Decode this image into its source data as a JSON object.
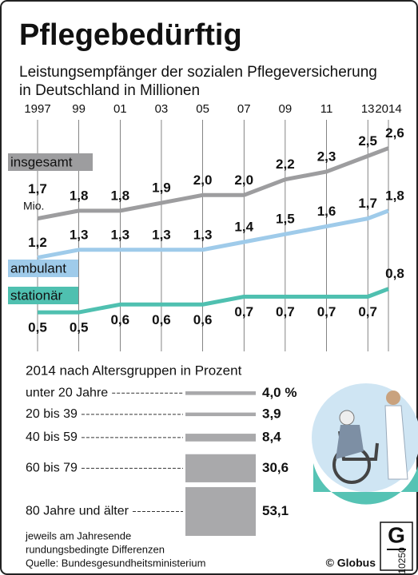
{
  "chart_data": [
    {
      "type": "line",
      "title": "Pflegebedürftig",
      "subtitle": [
        "Leistungsempfänger der sozialen Pflegeversicherung",
        "in Deutschland in Millionen"
      ],
      "annotation": "Mio.",
      "x": [
        1997,
        1999,
        2001,
        2003,
        2005,
        2007,
        2009,
        2011,
        2013,
        2014
      ],
      "xlim": [
        1997,
        2014
      ],
      "xticks": [
        1997,
        {
          "value": 1999,
          "label": "99"
        },
        {
          "value": 2001,
          "label": "01"
        },
        {
          "value": 2003,
          "label": "03"
        },
        {
          "value": 2005,
          "label": "05"
        },
        {
          "value": 2007,
          "label": "07"
        },
        {
          "value": 2009,
          "label": "09"
        },
        {
          "value": 2011,
          "label": "11"
        },
        {
          "value": 2013,
          "label": "13"
        },
        2014
      ],
      "ylim": [
        0,
        2.8
      ],
      "grid": true,
      "series": [
        {
          "name": "insgesamt",
          "color": "#9d9d9f",
          "values": [
            1.7,
            1.8,
            1.8,
            1.9,
            2.0,
            2.0,
            2.2,
            2.3,
            2.5,
            2.6
          ],
          "value_labels": [
            "1,7",
            "1,8",
            "1,8",
            "1,9",
            "2,0",
            "2,0",
            "2,2",
            "2,3",
            "2,5",
            "2,6"
          ]
        },
        {
          "name": "ambulant",
          "color": "#9fcbea",
          "values": [
            1.2,
            1.3,
            1.3,
            1.3,
            1.3,
            1.4,
            1.5,
            1.6,
            1.7,
            1.8
          ],
          "value_labels": [
            "1,2",
            "1,3",
            "1,3",
            "1,3",
            "1,3",
            "1,4",
            "1,5",
            "1,6",
            "1,7",
            "1,8"
          ]
        },
        {
          "name": "stationär",
          "color": "#4fc0b0",
          "values": [
            0.5,
            0.5,
            0.6,
            0.6,
            0.6,
            0.7,
            0.7,
            0.7,
            0.7,
            0.8
          ],
          "value_labels": [
            "0,5",
            "0,5",
            "0,6",
            "0,6",
            "0,6",
            "0,7",
            "0,7",
            "0,7",
            "0,7",
            "0,8"
          ]
        }
      ]
    },
    {
      "type": "bar",
      "title": "2014 nach Altersgruppen in Prozent",
      "color": "#a9a9ab",
      "categories": [
        "unter 20 Jahre",
        "20 bis 39",
        "40 bis 59",
        "60 bis 79",
        "80 Jahre und älter"
      ],
      "values": [
        4.0,
        3.9,
        8.4,
        30.6,
        53.1
      ],
      "value_labels": [
        "4,0 %",
        "3,9",
        "8,4",
        "30,6",
        "53,1"
      ]
    }
  ],
  "notes": [
    "jeweils am Jahresende",
    "rundungsbedingte Differenzen",
    "Quelle: Bundesgesundheitsministerium"
  ],
  "copyright": "© Globus",
  "graphic_number": "10250"
}
